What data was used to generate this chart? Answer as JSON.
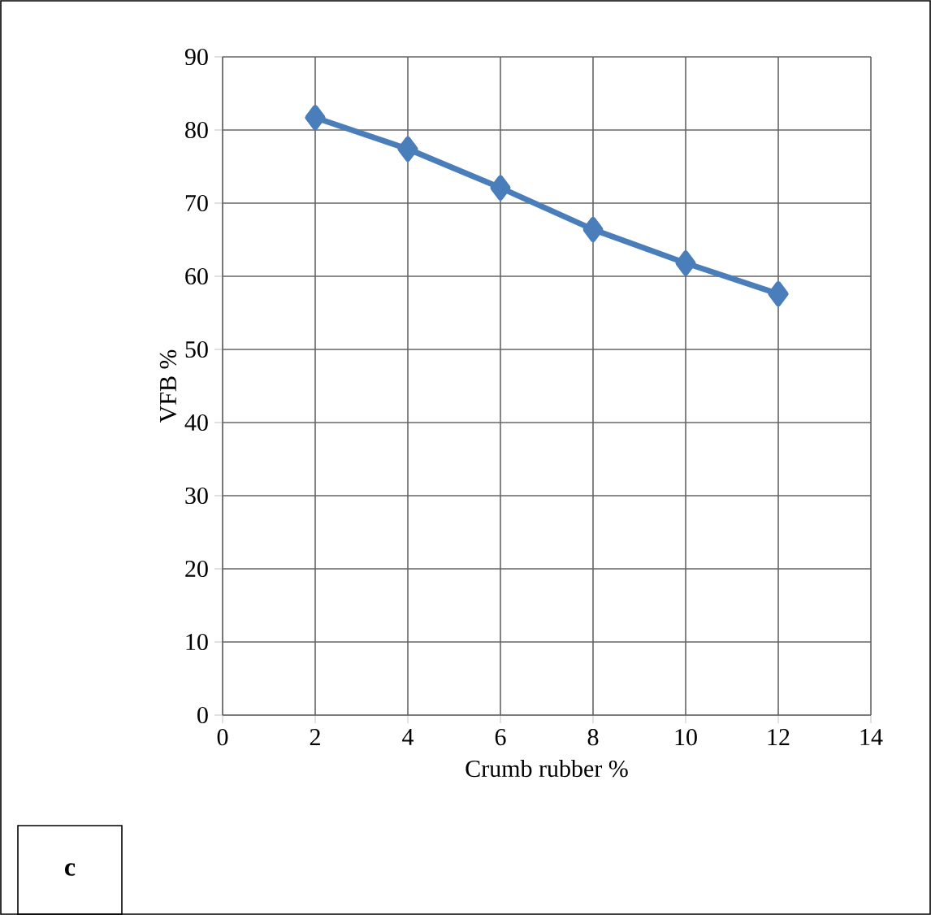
{
  "chart_data": {
    "type": "line",
    "xlabel": "Crumb rubber %",
    "ylabel": "VFB %",
    "annotations": [
      "c"
    ],
    "x": [
      2,
      4,
      6,
      8,
      10,
      12
    ],
    "series": [
      {
        "color": "#4a7ebb",
        "values": [
          81.7,
          77.4,
          72.1,
          66.4,
          61.8,
          57.6
        ]
      }
    ],
    "xlim": [
      0,
      14
    ],
    "ylim": [
      0,
      90
    ],
    "xticks": [
      0,
      2,
      4,
      6,
      8,
      10,
      12,
      14
    ],
    "yticks": [
      0,
      10,
      20,
      30,
      40,
      50,
      60,
      70,
      80,
      90
    ],
    "grid": true,
    "marker": "diamond",
    "line_style": "solid"
  }
}
